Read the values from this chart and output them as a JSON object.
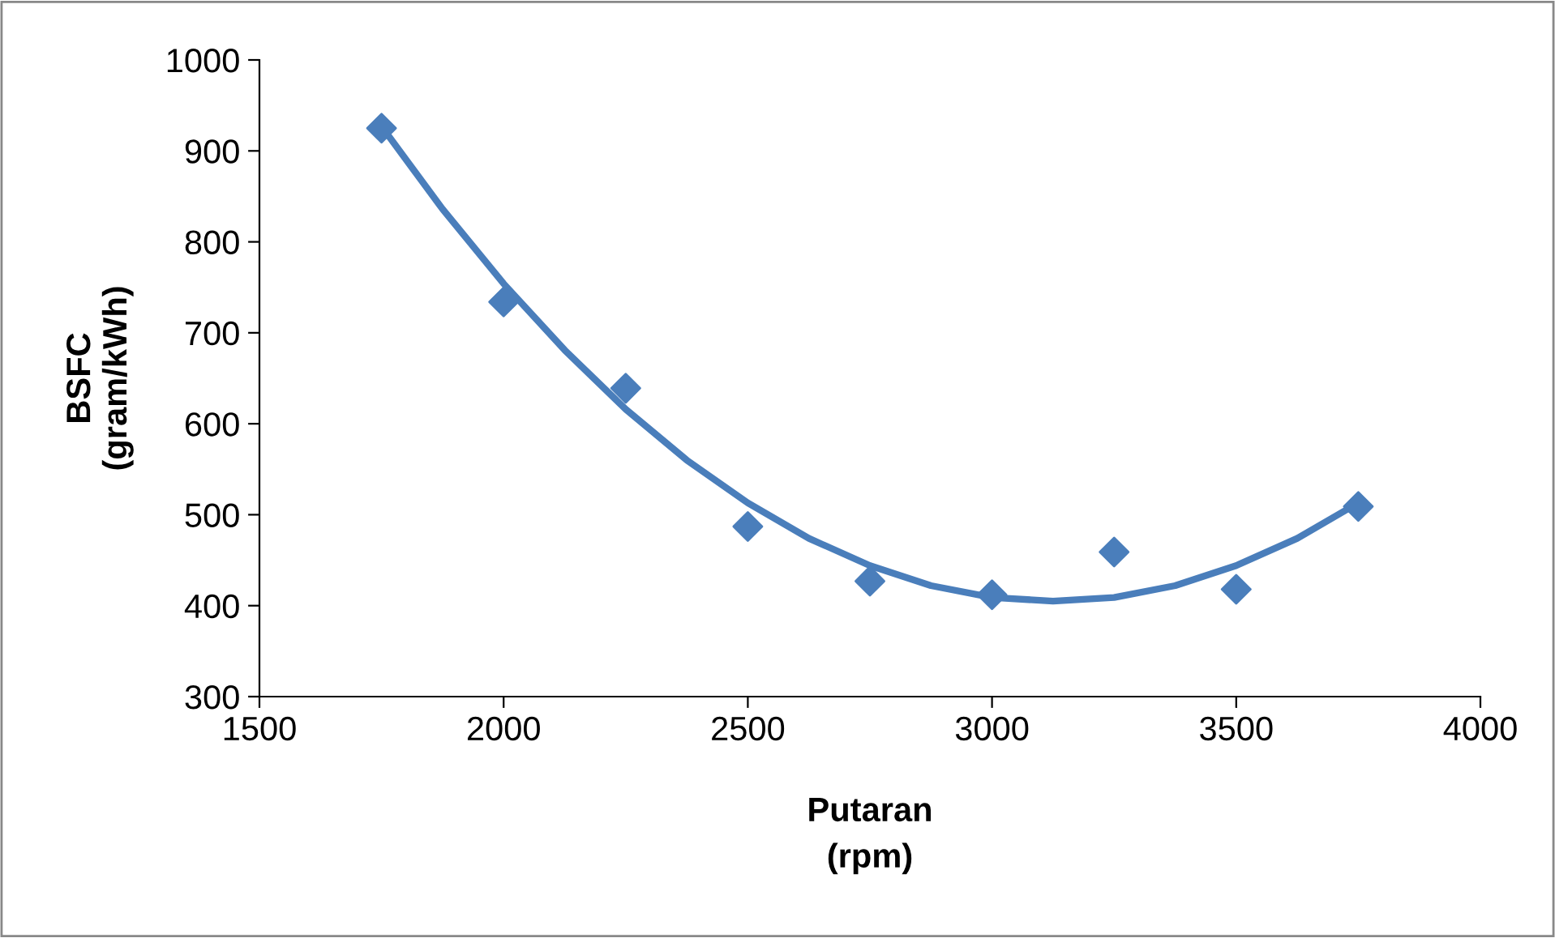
{
  "chart_data": {
    "type": "scatter",
    "xlabel": "Putaran\n(rpm)",
    "ylabel": "BSFC\n(gram/kWh)",
    "x": [
      1750,
      2000,
      2250,
      2500,
      2750,
      3000,
      3250,
      3500,
      3750
    ],
    "series": [
      {
        "color": "#4a7ebb",
        "marker": "diamond",
        "values": [
          925,
          734,
          639,
          487,
          427,
          412,
          459,
          418,
          509
        ]
      },
      {
        "type": "line",
        "color": "#4a7ebb",
        "marker": "none",
        "line_style": "solid",
        "x": [
          1750,
          1875,
          2000,
          2125,
          2250,
          2375,
          2500,
          2625,
          2750,
          2875,
          3000,
          3125,
          3250,
          3375,
          3500,
          3625,
          3750
        ],
        "values": [
          927,
          836,
          754,
          681,
          616,
          560,
          513,
          474,
          444,
          422,
          409,
          405,
          409,
          422,
          444,
          474,
          513
        ]
      }
    ],
    "xlim": [
      1500,
      4000
    ],
    "xticks": [
      1500,
      2000,
      2500,
      3000,
      3500,
      4000
    ],
    "ylim": [
      300,
      1000
    ],
    "yticks": [
      300,
      400,
      500,
      600,
      700,
      800,
      900,
      1000
    ],
    "grid": false,
    "legend": false
  }
}
